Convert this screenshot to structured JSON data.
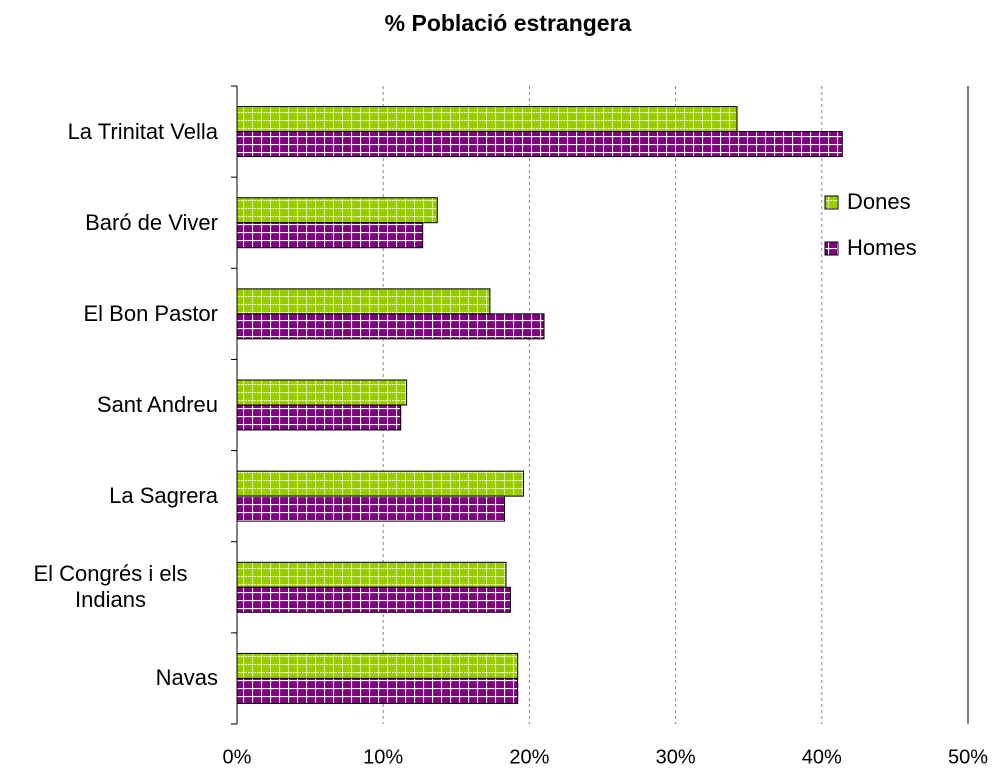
{
  "chart_data": {
    "type": "barh",
    "title": "% Població estrangera",
    "categories": [
      "La Trinitat Vella",
      "Baró de Viver",
      "El Bon Pastor",
      "Sant Andreu",
      "La Sagrera",
      "El Congrés i els Indians",
      "Navas"
    ],
    "series": [
      {
        "name": "Dones",
        "color": "#99cc00",
        "values": [
          34.2,
          13.7,
          17.3,
          11.6,
          19.6,
          18.4,
          19.2
        ]
      },
      {
        "name": "Homes",
        "color": "#800080",
        "values": [
          41.4,
          12.7,
          21.0,
          11.2,
          18.3,
          18.7,
          19.2
        ]
      }
    ],
    "xlim": [
      0,
      50
    ],
    "xticks": [
      {
        "value": 0,
        "label": "0%"
      },
      {
        "value": 10,
        "label": "10%"
      },
      {
        "value": 20,
        "label": "20%"
      },
      {
        "value": 30,
        "label": "30%"
      },
      {
        "value": 40,
        "label": "40%"
      },
      {
        "value": 50,
        "label": "50%"
      }
    ],
    "grid": true,
    "legend": "upper right"
  }
}
